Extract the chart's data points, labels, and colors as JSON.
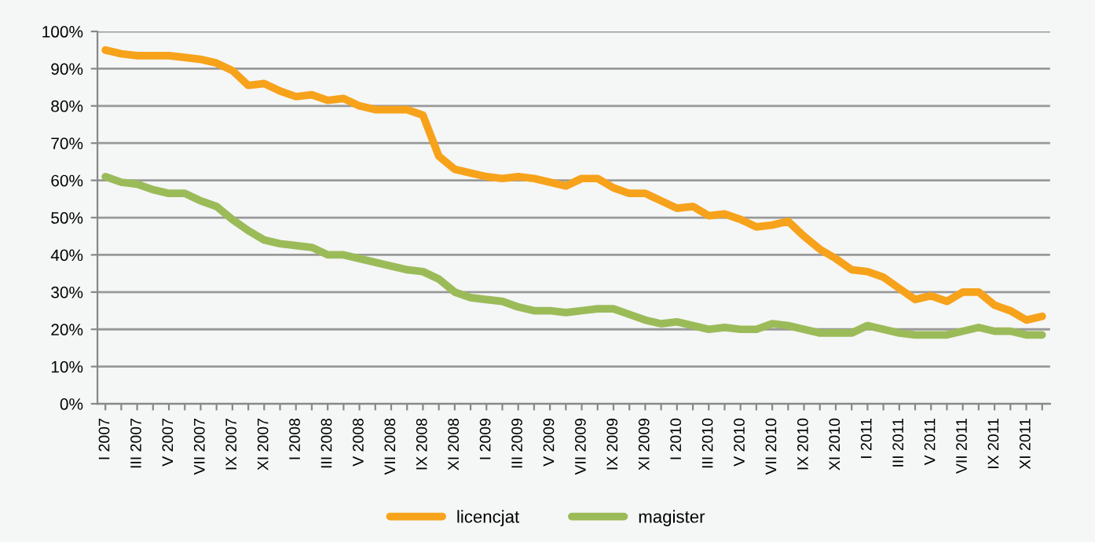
{
  "chart_data": {
    "type": "line",
    "categories": [
      "I 2007",
      null,
      "III 2007",
      null,
      "V 2007",
      null,
      "VII 2007",
      null,
      "IX 2007",
      null,
      "XI 2007",
      null,
      "I 2008",
      null,
      "III 2008",
      null,
      "V 2008",
      null,
      "VII 2008",
      null,
      "IX 2008",
      null,
      "XI 2008",
      null,
      "I 2009",
      null,
      "III 2009",
      null,
      "V 2009",
      null,
      "VII 2009",
      null,
      "IX 2009",
      null,
      "XI 2009",
      null,
      "I 2010",
      null,
      "III 2010",
      null,
      "V 2010",
      null,
      "VII 2010",
      null,
      "IX 2010",
      null,
      "XI 2010",
      null,
      "I 2011",
      null,
      "III 2011",
      null,
      "V 2011",
      null,
      "VII 2011",
      null,
      "IX 2011",
      null,
      "XI 2011",
      null
    ],
    "series": [
      {
        "name": "licencjat",
        "color": "#f7a21b",
        "values": [
          95,
          94,
          93.5,
          93.5,
          93.5,
          93,
          92.5,
          91.5,
          89.5,
          85.5,
          86,
          84,
          82.5,
          83,
          81.5,
          82,
          80,
          79,
          79,
          79,
          77.5,
          66.5,
          63,
          62,
          61,
          60.5,
          61,
          60.5,
          59.5,
          58.5,
          60.5,
          60.5,
          58,
          56.5,
          56.5,
          54.5,
          52.5,
          53,
          50.5,
          51,
          49.5,
          47.5,
          48,
          49,
          45,
          41.5,
          39,
          36,
          35.5,
          34,
          31,
          28,
          29,
          27.5,
          30,
          30,
          26.5,
          25,
          22.5,
          23.5
        ]
      },
      {
        "name": "magister",
        "color": "#9bbb59",
        "values": [
          61,
          59.5,
          59,
          57.5,
          56.5,
          56.5,
          54.5,
          53,
          49.5,
          46.5,
          44,
          43,
          42.5,
          42,
          40,
          40,
          39,
          38,
          37,
          36,
          35.5,
          33.5,
          30,
          28.5,
          28,
          27.5,
          26,
          25,
          25,
          24.5,
          25,
          25.5,
          25.5,
          24,
          22.5,
          21.5,
          22,
          21,
          20,
          20.5,
          20,
          20,
          21.5,
          21,
          20,
          19,
          19,
          19,
          21,
          20,
          19,
          18.5,
          18.5,
          18.5,
          19.5,
          20.5,
          19.5,
          19.5,
          18.5,
          18.5
        ]
      }
    ],
    "ylim": [
      0,
      100
    ],
    "yticks": [
      {
        "value": 0,
        "label": "0%"
      },
      {
        "value": 10,
        "label": "10%"
      },
      {
        "value": 20,
        "label": "20%"
      },
      {
        "value": 30,
        "label": "30%"
      },
      {
        "value": 40,
        "label": "40%"
      },
      {
        "value": 50,
        "label": "50%"
      },
      {
        "value": 60,
        "label": "60%"
      },
      {
        "value": 70,
        "label": "70%"
      },
      {
        "value": 80,
        "label": "80%"
      },
      {
        "value": 90,
        "label": "90%"
      },
      {
        "value": 100,
        "label": "100%"
      }
    ],
    "grid": "y",
    "legend": "bottom",
    "marker": "none",
    "line_style": "solid"
  }
}
